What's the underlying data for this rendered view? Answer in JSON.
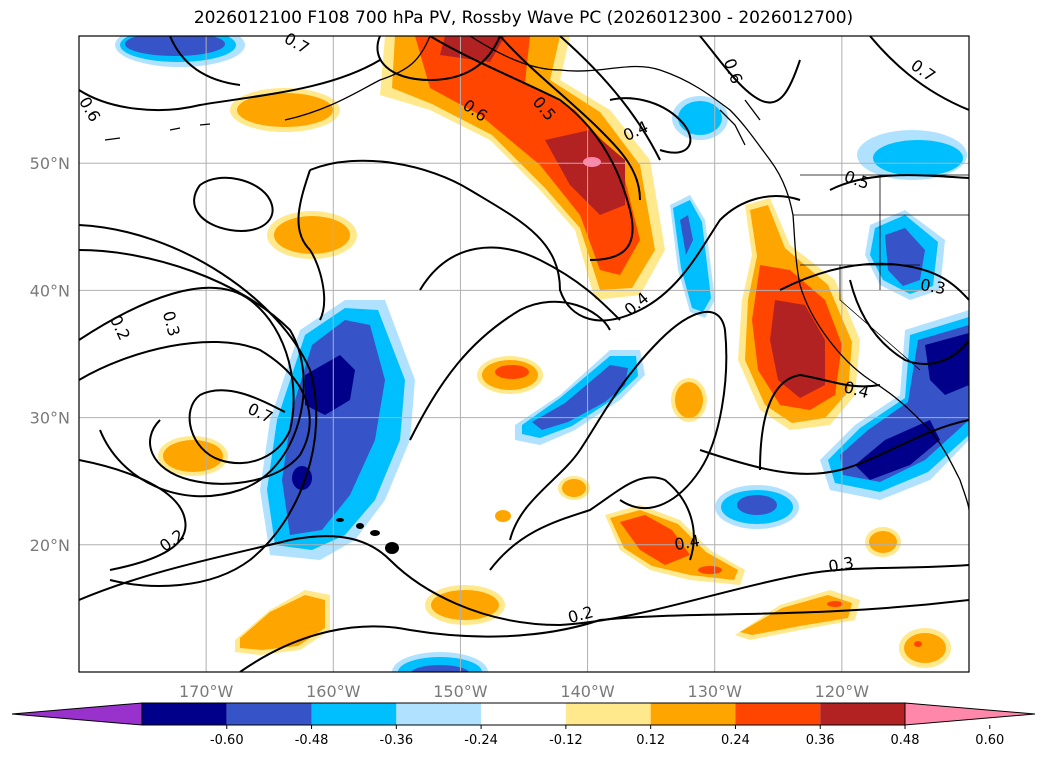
{
  "title": "2026012100 F108 700 hPa PV, Rossby Wave PC (2026012300 - 2026012700)",
  "map": {
    "lon_range": [
      -180,
      -110
    ],
    "lat_range": [
      10,
      60
    ],
    "lon_ticks": [
      {
        "value": -170,
        "label": "170°W"
      },
      {
        "value": -160,
        "label": "160°W"
      },
      {
        "value": -150,
        "label": "150°W"
      },
      {
        "value": -140,
        "label": "140°W"
      },
      {
        "value": -130,
        "label": "130°W"
      },
      {
        "value": -120,
        "label": "120°W"
      }
    ],
    "lat_ticks": [
      {
        "value": 20,
        "label": "20°N"
      },
      {
        "value": 30,
        "label": "30°N"
      },
      {
        "value": 40,
        "label": "40°N"
      },
      {
        "value": 50,
        "label": "50°N"
      }
    ],
    "gridlines": true
  },
  "contour_labels": [
    "0.7",
    "0.6",
    "0.5",
    "0.4",
    "0.6",
    "0.7",
    "0.6",
    "0.5",
    "0.3",
    "0.2",
    "0.3",
    "0.7",
    "0.4",
    "0.4",
    "0.4",
    "0.3",
    "0.2",
    "0.2"
  ],
  "colorbar": {
    "levels": [
      "-0.60",
      "-0.48",
      "-0.36",
      "-0.24",
      "-0.12",
      "0.12",
      "0.24",
      "0.36",
      "0.48",
      "0.60"
    ],
    "colors": [
      "#9932cc",
      "#00008b",
      "#3654c8",
      "#00bfff",
      "#b0e2ff",
      "#ffffff",
      "#ffe98c",
      "#ffa500",
      "#ff4500",
      "#b22222",
      "#ff88aa"
    ]
  },
  "fill_colors": {
    "neg3": "#00008b",
    "neg2": "#3654c8",
    "neg1": "#00bfff",
    "neg0": "#b0e2ff",
    "pos0": "#ffe98c",
    "pos1": "#ffa500",
    "pos2": "#ff4500",
    "pos3": "#b22222",
    "pos4": "#ff88aa"
  }
}
